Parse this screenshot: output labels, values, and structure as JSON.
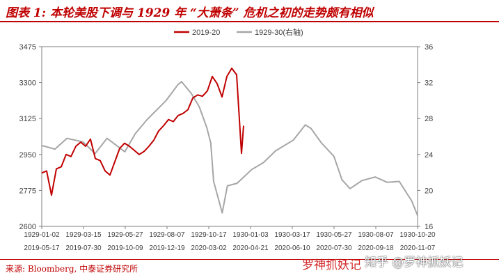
{
  "header": {
    "title": "图表 1:  本轮美股下调与 1929 年 “大萧条” 危机之初的走势颇有相似"
  },
  "footer": {
    "source": "来源: Bloomberg, 中泰证券研究所"
  },
  "watermarks": {
    "left": "罗神抓妖记",
    "right": "知乎 @罗神抓妖记"
  },
  "chart_data": {
    "type": "line",
    "title": "",
    "legend_position": "top",
    "series": [
      {
        "name": "2019-20",
        "axis": "left",
        "color": "#c00000",
        "x": [
          "2019-05-17",
          "2019-05-24",
          "2019-05-31",
          "2019-06-07",
          "2019-06-14",
          "2019-06-21",
          "2019-06-28",
          "2019-07-05",
          "2019-07-12",
          "2019-07-19",
          "2019-07-26",
          "2019-08-02",
          "2019-08-09",
          "2019-08-16",
          "2019-08-23",
          "2019-08-30",
          "2019-09-06",
          "2019-09-13",
          "2019-09-20",
          "2019-09-27",
          "2019-10-04",
          "2019-10-11",
          "2019-10-18",
          "2019-10-25",
          "2019-11-01",
          "2019-11-08",
          "2019-11-15",
          "2019-11-22",
          "2019-11-29",
          "2019-12-06",
          "2019-12-13",
          "2019-12-20",
          "2019-12-27",
          "2020-01-03",
          "2020-01-10",
          "2020-01-17",
          "2020-01-24",
          "2020-01-31",
          "2020-02-07",
          "2020-02-14",
          "2020-02-21",
          "2020-02-28",
          "2020-03-02"
        ],
        "values": [
          2860,
          2870,
          2752,
          2880,
          2890,
          2950,
          2940,
          2990,
          3010,
          2990,
          3025,
          2930,
          2920,
          2870,
          2850,
          2915,
          2980,
          3005,
          2990,
          2970,
          2950,
          2965,
          2990,
          3020,
          3065,
          3090,
          3120,
          3110,
          3140,
          3150,
          3168,
          3225,
          3240,
          3234,
          3260,
          3330,
          3295,
          3230,
          3330,
          3370,
          3338,
          2955,
          3090
        ]
      },
      {
        "name": "1929-30(右轴)",
        "axis": "right",
        "color": "#a6a6a6",
        "x": [
          "1929-01-02",
          "1929-01-25",
          "1929-02-15",
          "1929-03-15",
          "1929-04-05",
          "1929-04-26",
          "1929-05-27",
          "1929-06-14",
          "1929-07-05",
          "1929-08-07",
          "1929-08-28",
          "1929-09-03",
          "1929-09-20",
          "1929-10-04",
          "1929-10-17",
          "1929-10-24",
          "1929-10-29",
          "1929-11-13",
          "1929-11-22",
          "1929-12-09",
          "1930-01-03",
          "1930-01-24",
          "1930-02-14",
          "1930-03-17",
          "1930-04-07",
          "1930-04-17",
          "1930-05-05",
          "1930-05-27",
          "1930-06-10",
          "1930-06-24",
          "1930-07-15",
          "1930-08-07",
          "1930-08-28",
          "1930-09-18",
          "1930-10-10",
          "1930-10-20"
        ],
        "values": [
          25.0,
          24.6,
          25.8,
          25.4,
          24.1,
          25.8,
          24.3,
          26.3,
          27.9,
          30.0,
          31.8,
          32.1,
          30.8,
          29.3,
          27.0,
          25.3,
          21.0,
          17.5,
          20.5,
          20.8,
          22.3,
          23.1,
          24.4,
          25.6,
          27.3,
          26.9,
          25.3,
          23.8,
          21.2,
          20.2,
          21.1,
          21.5,
          20.9,
          21.0,
          18.8,
          17.2
        ]
      }
    ],
    "x_ticks_top": [
      "1929-01-02",
      "1929-03-15",
      "1929-05-27",
      "1929-08-07",
      "1929-10-17",
      "1930-01-03",
      "1930-03-17",
      "1930-05-27",
      "1930-08-07",
      "1930-10-20"
    ],
    "x_ticks_bottom": [
      "2019-05-17",
      "2019-07-30",
      "2019-10-09",
      "2019-12-19",
      "2020-03-02",
      "2020-04-21",
      "2020-06-10",
      "2020-07-30",
      "2020-09-18",
      "2020-11-07"
    ],
    "y_left": {
      "ticks": [
        2600,
        2775,
        2950,
        3125,
        3300,
        3475
      ],
      "range": [
        2600,
        3475
      ]
    },
    "y_right": {
      "ticks": [
        16,
        20,
        24,
        28,
        32,
        36
      ],
      "range": [
        16,
        36
      ]
    },
    "grid": false
  }
}
